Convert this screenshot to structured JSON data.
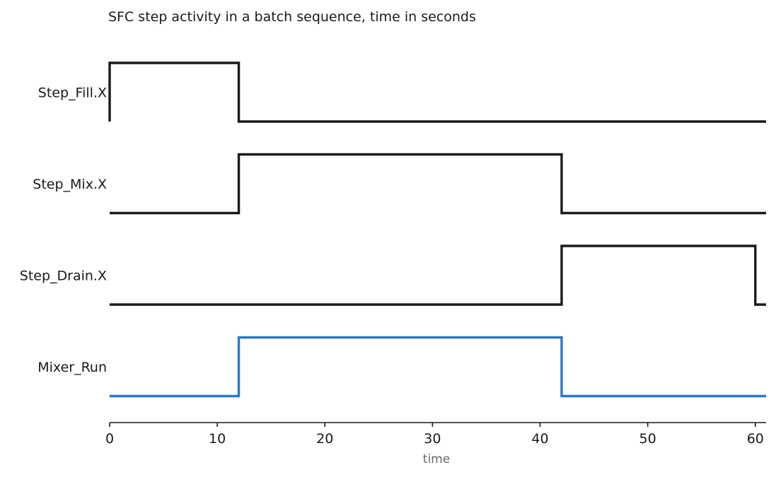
{
  "chart_data": {
    "type": "line",
    "subtype": "step",
    "title": "SFC step activity in a batch sequence, time in seconds",
    "xlabel": "time",
    "ylabel": "",
    "xlim": [
      0,
      61
    ],
    "xticks": [
      0,
      10,
      20,
      30,
      40,
      50,
      60
    ],
    "grid": false,
    "legend": "none",
    "series": [
      {
        "name": "Step_Fill.X",
        "color": "#1a1a1a",
        "points": [
          [
            0,
            0
          ],
          [
            0,
            1
          ],
          [
            12,
            1
          ],
          [
            12,
            0
          ],
          [
            61,
            0
          ]
        ]
      },
      {
        "name": "Step_Mix.X",
        "color": "#1a1a1a",
        "points": [
          [
            0,
            0
          ],
          [
            12,
            0
          ],
          [
            12,
            1
          ],
          [
            42,
            1
          ],
          [
            42,
            0
          ],
          [
            61,
            0
          ]
        ]
      },
      {
        "name": "Step_Drain.X",
        "color": "#1a1a1a",
        "points": [
          [
            0,
            0
          ],
          [
            42,
            0
          ],
          [
            42,
            1
          ],
          [
            60,
            1
          ],
          [
            60,
            0
          ],
          [
            61,
            0
          ]
        ]
      },
      {
        "name": "Mixer_Run",
        "color": "#2a76cc",
        "points": [
          [
            0,
            0
          ],
          [
            12,
            0
          ],
          [
            12,
            1
          ],
          [
            42,
            1
          ],
          [
            42,
            0
          ],
          [
            61,
            0
          ]
        ]
      }
    ]
  }
}
